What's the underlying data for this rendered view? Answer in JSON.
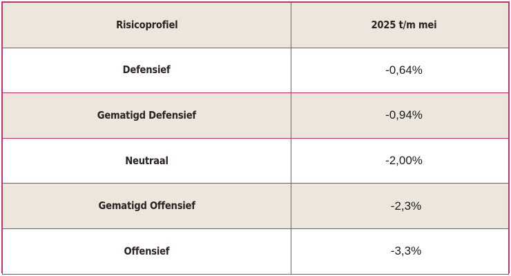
{
  "table": {
    "headers": {
      "col1": "Risicoprofiel",
      "col2": "2025 t/m mei"
    },
    "rows": [
      {
        "profile": "Defensief",
        "value": "-0,64%"
      },
      {
        "profile": "Gematigd Defensief",
        "value": "-0,94%"
      },
      {
        "profile": "Neutraal",
        "value": "-2,00%"
      },
      {
        "profile": "Gematigd Offensief",
        "value": "-2,3%"
      },
      {
        "profile": "Offensief",
        "value": "-3,3%"
      }
    ]
  },
  "colors": {
    "border": "#c0336b",
    "header_bg": "#ece6dd",
    "shaded_row_bg": "#ece6dd",
    "plain_row_bg": "#ffffff"
  }
}
